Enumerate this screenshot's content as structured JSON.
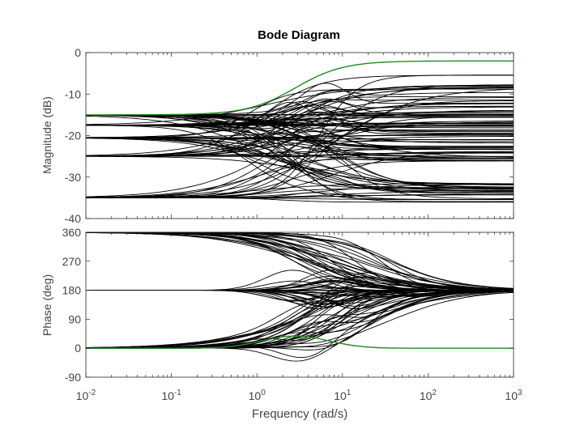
{
  "chart_data": [
    {
      "type": "line",
      "panel": "magnitude",
      "title": "Bode Diagram",
      "ylabel": "Magnitude (dB)",
      "xscale": "log",
      "xlim": [
        0.01,
        1000
      ],
      "ylim": [
        -40,
        0
      ],
      "yticks": [
        0,
        -10,
        -20,
        -30,
        -40
      ],
      "ytick_labels": [
        "0",
        "-10",
        "-20",
        "-30",
        "-40"
      ],
      "low_freq_levels_db": [
        -15,
        -17.5,
        -20.5,
        -25,
        -35
      ],
      "high_freq_levels_db": [
        -2,
        -6,
        -8,
        -9,
        -11,
        -12,
        -13,
        -14,
        -15,
        -16,
        -17,
        -18,
        -19,
        -20,
        -21,
        -22,
        -23,
        -24,
        -25,
        -26,
        -32,
        -33,
        -34,
        -35,
        -36
      ],
      "highlight_series": {
        "name": "envelope",
        "color": "#1e8c1e",
        "low_db": -15,
        "high_db": -2
      },
      "curve_color": "#000000"
    },
    {
      "type": "line",
      "panel": "phase",
      "ylabel": "Phase (deg)",
      "xlabel": "Frequency  (rad/s)",
      "xscale": "log",
      "xlim": [
        0.01,
        1000
      ],
      "xtick_labels": [
        {
          "base": "10",
          "exp": "-2"
        },
        {
          "base": "10",
          "exp": "-1"
        },
        {
          "base": "10",
          "exp": "0"
        },
        {
          "base": "10",
          "exp": "1"
        },
        {
          "base": "10",
          "exp": "2"
        },
        {
          "base": "10",
          "exp": "3"
        }
      ],
      "ylim": [
        -90,
        360
      ],
      "yticks": [
        360,
        270,
        180,
        90,
        0,
        -90
      ],
      "ytick_labels": [
        "360",
        "270",
        "180",
        "90",
        "0",
        "-90"
      ],
      "low_freq_levels_deg": [
        360,
        180,
        0
      ],
      "high_freq_level_deg": 180,
      "highlight_series": {
        "name": "envelope",
        "color": "#1e8c1e",
        "low_deg": 0,
        "peak_deg": 38,
        "high_deg": 0
      },
      "curve_color": "#000000"
    }
  ]
}
